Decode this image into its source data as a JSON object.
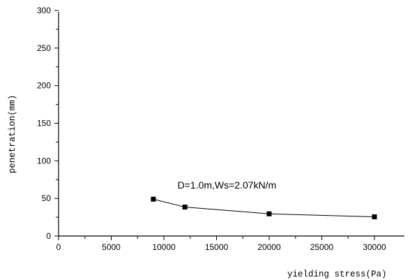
{
  "chart_data": {
    "type": "line",
    "title": "",
    "xlabel": "yielding stress(Pa)",
    "ylabel": "penetration(mm)",
    "xlim": [
      0,
      32000
    ],
    "ylim": [
      0,
      300
    ],
    "xticks": [
      0,
      5000,
      10000,
      15000,
      20000,
      25000,
      30000
    ],
    "xtick_labels": [
      "0",
      "5000",
      "10000",
      "15000",
      "20000",
      "25000",
      "30000"
    ],
    "yticks": [
      0,
      50,
      100,
      150,
      200,
      250,
      300
    ],
    "ytick_labels": [
      "0",
      "50",
      "100",
      "150",
      "200",
      "250",
      "300"
    ],
    "grid": false,
    "legend": "none",
    "series": [
      {
        "x": [
          9000,
          12000,
          20000,
          30000
        ],
        "y": [
          49,
          38.5,
          29.5,
          25.5
        ],
        "marker": "square",
        "color": "#000000"
      }
    ],
    "annotations": [
      {
        "text": "D=1.0m,Ws=2.07kN/m",
        "x": 11300,
        "y": 63
      }
    ]
  }
}
